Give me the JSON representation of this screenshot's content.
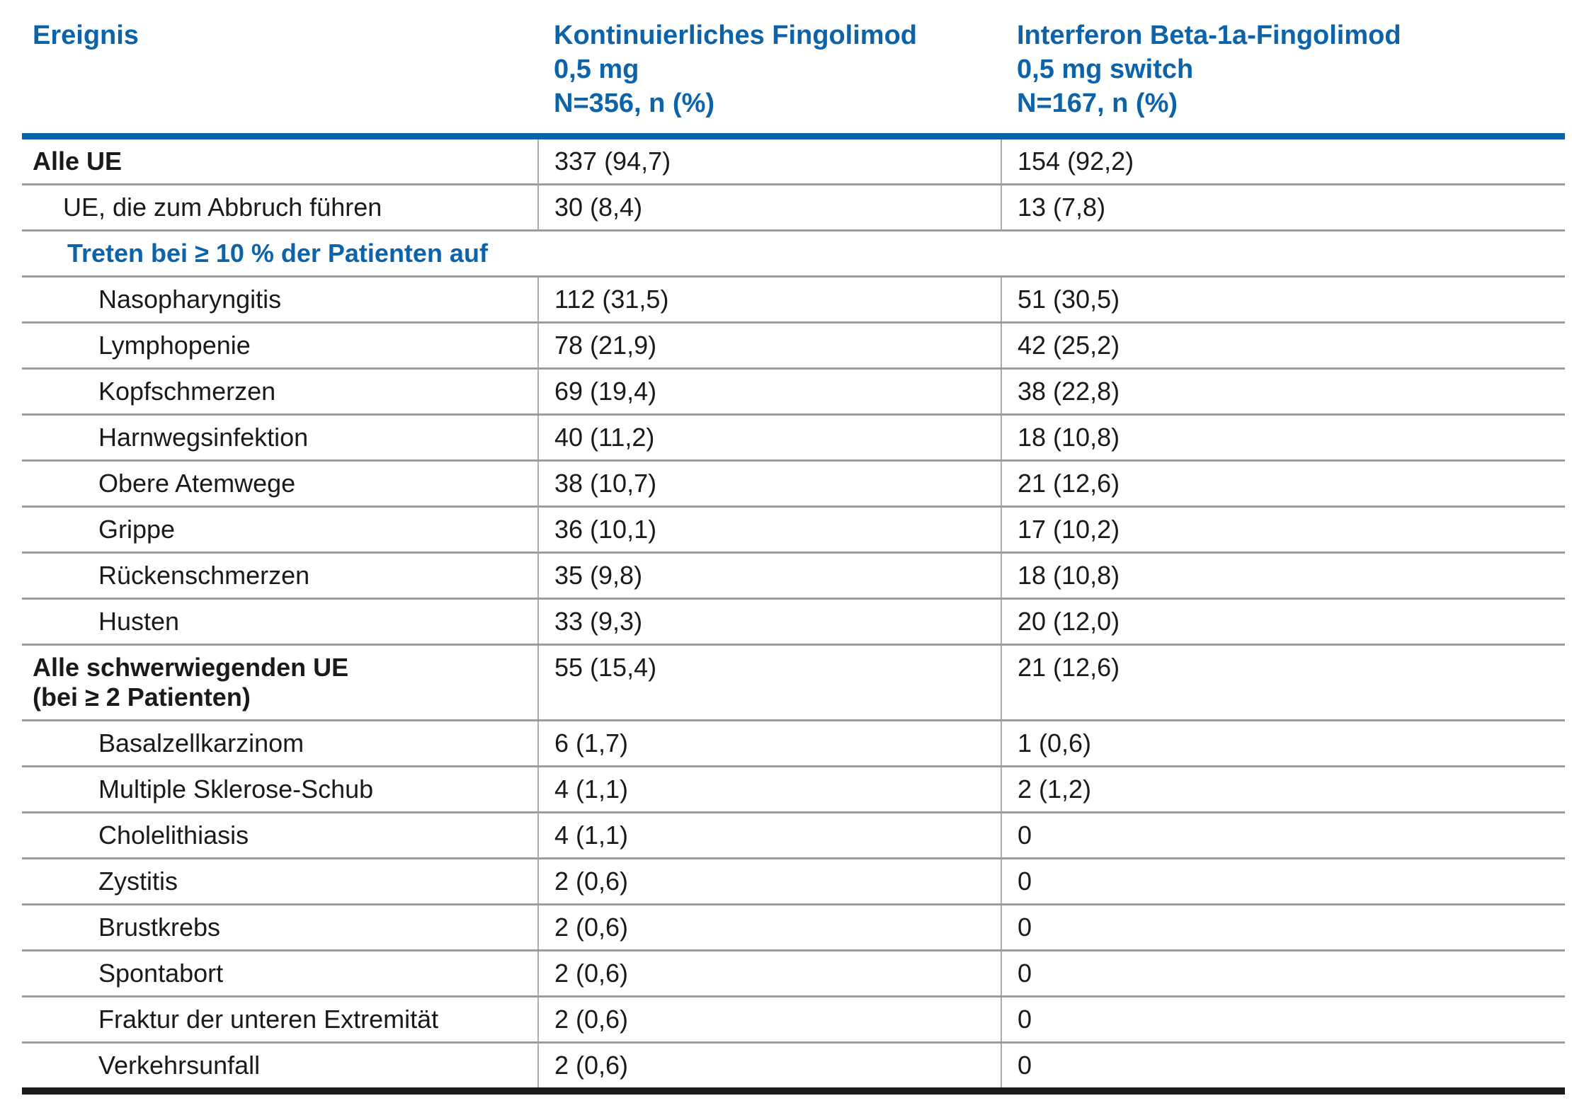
{
  "page": {
    "background": "#ffffff"
  },
  "table": {
    "colors": {
      "accent": "#0d63aa",
      "text": "#1a1a1a",
      "grid": "#9c9c9c",
      "divider": "#ababab",
      "bottom_rule": "#1a1a1a"
    },
    "header": {
      "col1": "Ereignis",
      "col2": "Kontinuierliches Fingolimod\n0,5 mg\nN=356, n (%)",
      "col3": "Interferon Beta-1a-Fingolimod\n0,5 mg switch\nN=167, n (%)"
    },
    "rows": [
      {
        "type": "data",
        "indent": 0,
        "bold": true,
        "label": "Alle UE",
        "col2": "337 (94,7)",
        "col3": "154 (92,2)"
      },
      {
        "type": "data",
        "indent": 1,
        "bold": false,
        "label": "UE, die zum Abbruch führen",
        "col2": "30 (8,4)",
        "col3": "13 (7,8)"
      },
      {
        "type": "section",
        "label": "Treten bei ≥ 10 % der Patienten auf"
      },
      {
        "type": "data",
        "indent": 2,
        "bold": false,
        "label": "Nasopharyngitis",
        "col2": "112 (31,5)",
        "col3": "51 (30,5)"
      },
      {
        "type": "data",
        "indent": 2,
        "bold": false,
        "label": "Lymphopenie",
        "col2": "78 (21,9)",
        "col3": "42 (25,2)"
      },
      {
        "type": "data",
        "indent": 2,
        "bold": false,
        "label": "Kopfschmerzen",
        "col2": "69 (19,4)",
        "col3": "38 (22,8)"
      },
      {
        "type": "data",
        "indent": 2,
        "bold": false,
        "label": "Harnwegsinfektion",
        "col2": "40 (11,2)",
        "col3": "18 (10,8)"
      },
      {
        "type": "data",
        "indent": 2,
        "bold": false,
        "label": "Obere Atemwege",
        "col2": "38 (10,7)",
        "col3": "21 (12,6)"
      },
      {
        "type": "data",
        "indent": 2,
        "bold": false,
        "label": "Grippe",
        "col2": "36 (10,1)",
        "col3": "17 (10,2)"
      },
      {
        "type": "data",
        "indent": 2,
        "bold": false,
        "label": "Rückenschmerzen",
        "col2": "35 (9,8)",
        "col3": "18 (10,8)"
      },
      {
        "type": "data",
        "indent": 2,
        "bold": false,
        "label": "Husten",
        "col2": "33 (9,3)",
        "col3": "20 (12,0)"
      },
      {
        "type": "data",
        "indent": 0,
        "bold": true,
        "label": "Alle schwerwiegenden UE\n(bei ≥ 2 Patienten)",
        "col2": "55 (15,4)",
        "col3": "21 (12,6)"
      },
      {
        "type": "data",
        "indent": 2,
        "bold": false,
        "label": "Basalzellkarzinom",
        "col2": "6 (1,7)",
        "col3": "1 (0,6)"
      },
      {
        "type": "data",
        "indent": 2,
        "bold": false,
        "label": "Multiple Sklerose-Schub",
        "col2": "4 (1,1)",
        "col3": "2 (1,2)"
      },
      {
        "type": "data",
        "indent": 2,
        "bold": false,
        "label": "Cholelithiasis",
        "col2": "4 (1,1)",
        "col3": "0"
      },
      {
        "type": "data",
        "indent": 2,
        "bold": false,
        "label": "Zystitis",
        "col2": "2 (0,6)",
        "col3": "0"
      },
      {
        "type": "data",
        "indent": 2,
        "bold": false,
        "label": "Brustkrebs",
        "col2": "2 (0,6)",
        "col3": "0"
      },
      {
        "type": "data",
        "indent": 2,
        "bold": false,
        "label": "Spontabort",
        "col2": "2 (0,6)",
        "col3": "0"
      },
      {
        "type": "data",
        "indent": 2,
        "bold": false,
        "label": "Fraktur der unteren Extremität",
        "col2": "2 (0,6)",
        "col3": "0"
      },
      {
        "type": "data",
        "indent": 2,
        "bold": false,
        "label": "Verkehrsunfall",
        "col2": "2 (0,6)",
        "col3": "0"
      }
    ]
  }
}
